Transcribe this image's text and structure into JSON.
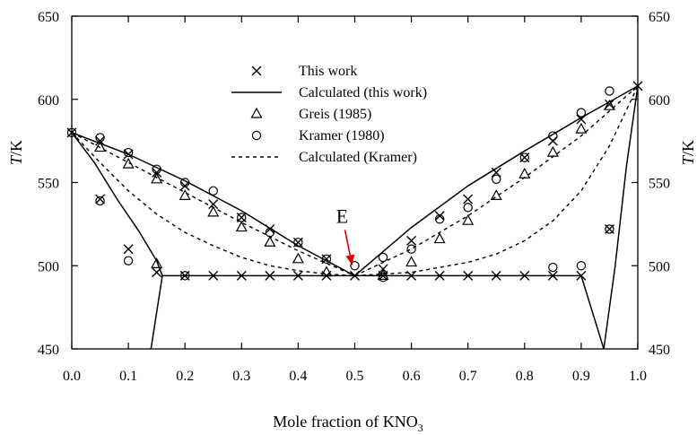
{
  "colors": {
    "ink": "#000000",
    "annotation": "#e00000",
    "background": "#ffffff"
  },
  "chart_data": {
    "type": "scatter",
    "title": "",
    "xlabel_prefix": "Mole fraction of KNO",
    "xlabel_sub": "3",
    "ylabel_left": {
      "italic": "T",
      "rest": "/K"
    },
    "ylabel_right": {
      "italic": "T",
      "rest": "/K"
    },
    "xlim": [
      0.0,
      1.0
    ],
    "ylim": [
      450,
      650
    ],
    "xticks": [
      0.0,
      0.1,
      0.2,
      0.3,
      0.4,
      0.5,
      0.6,
      0.7,
      0.8,
      0.9,
      1.0
    ],
    "xtick_labels": [
      "0.0",
      "0.1",
      "0.2",
      "0.3",
      "0.4",
      "0.5",
      "0.6",
      "0.7",
      "0.8",
      "0.9",
      "1.0"
    ],
    "yticks": [
      450,
      500,
      550,
      600,
      650
    ],
    "ytick_labels": [
      "450",
      "500",
      "550",
      "600",
      "650"
    ],
    "grid": false,
    "legend_position": "top-center",
    "annotation": {
      "text": "E",
      "x": 0.5,
      "y": 494,
      "color": "#e00000"
    },
    "series": [
      {
        "name": "This work",
        "marker": "x",
        "points": [
          [
            0.0,
            580
          ],
          [
            0.05,
            575
          ],
          [
            0.1,
            567
          ],
          [
            0.15,
            556
          ],
          [
            0.2,
            548
          ],
          [
            0.25,
            537
          ],
          [
            0.3,
            529
          ],
          [
            0.35,
            522
          ],
          [
            0.4,
            514
          ],
          [
            0.45,
            504
          ],
          [
            0.05,
            540
          ],
          [
            0.1,
            510
          ],
          [
            0.15,
            496
          ],
          [
            0.2,
            494
          ],
          [
            0.25,
            494
          ],
          [
            0.3,
            494
          ],
          [
            0.35,
            494
          ],
          [
            0.4,
            494
          ],
          [
            0.45,
            494
          ],
          [
            0.5,
            494
          ],
          [
            0.55,
            494
          ],
          [
            0.6,
            494
          ],
          [
            0.65,
            494
          ],
          [
            0.7,
            494
          ],
          [
            0.75,
            494
          ],
          [
            0.8,
            494
          ],
          [
            0.85,
            494
          ],
          [
            0.9,
            494
          ],
          [
            0.55,
            498
          ],
          [
            0.6,
            515
          ],
          [
            0.65,
            530
          ],
          [
            0.7,
            540
          ],
          [
            0.75,
            556
          ],
          [
            0.8,
            565
          ],
          [
            0.85,
            575
          ],
          [
            0.9,
            588
          ],
          [
            0.95,
            597
          ],
          [
            1.0,
            608
          ],
          [
            0.95,
            522
          ]
        ]
      },
      {
        "name": "Calculated (this work)",
        "style": "solid",
        "segments": [
          [
            [
              0.0,
              580
            ],
            [
              0.1,
              567
            ],
            [
              0.2,
              551
            ],
            [
              0.3,
              533
            ],
            [
              0.4,
              512
            ],
            [
              0.5,
              494
            ]
          ],
          [
            [
              0.5,
              494
            ],
            [
              0.6,
              523
            ],
            [
              0.7,
              548
            ],
            [
              0.8,
              569
            ],
            [
              0.9,
              589
            ],
            [
              1.0,
              608
            ]
          ],
          [
            [
              0.16,
              494
            ],
            [
              0.9,
              494
            ]
          ],
          [
            [
              0.0,
              580
            ],
            [
              0.04,
              562
            ],
            [
              0.08,
              540
            ],
            [
              0.12,
              520
            ],
            [
              0.15,
              503
            ],
            [
              0.16,
              494
            ]
          ],
          [
            [
              0.16,
              494
            ],
            [
              0.14,
              450
            ]
          ],
          [
            [
              0.9,
              494
            ],
            [
              0.94,
              450
            ]
          ],
          [
            [
              1.0,
              608
            ],
            [
              0.98,
              560
            ],
            [
              0.96,
              500
            ],
            [
              0.94,
              450
            ]
          ]
        ]
      },
      {
        "name": "Greis (1985)",
        "marker": "triangle",
        "points": [
          [
            0.05,
            571
          ],
          [
            0.1,
            561
          ],
          [
            0.15,
            552
          ],
          [
            0.2,
            542
          ],
          [
            0.25,
            532
          ],
          [
            0.3,
            523
          ],
          [
            0.35,
            514
          ],
          [
            0.4,
            504
          ],
          [
            0.45,
            496
          ],
          [
            0.15,
            501
          ],
          [
            0.55,
            494
          ],
          [
            0.6,
            502
          ],
          [
            0.65,
            516
          ],
          [
            0.7,
            527
          ],
          [
            0.75,
            542
          ],
          [
            0.8,
            555
          ],
          [
            0.85,
            568
          ],
          [
            0.9,
            582
          ],
          [
            0.95,
            596
          ]
        ]
      },
      {
        "name": "Kramer (1980)",
        "marker": "circle",
        "points": [
          [
            0.0,
            580
          ],
          [
            0.05,
            577
          ],
          [
            0.1,
            568
          ],
          [
            0.15,
            558
          ],
          [
            0.2,
            550
          ],
          [
            0.25,
            545
          ],
          [
            0.3,
            529
          ],
          [
            0.35,
            520
          ],
          [
            0.4,
            514
          ],
          [
            0.45,
            504
          ],
          [
            0.5,
            500
          ],
          [
            0.05,
            539
          ],
          [
            0.1,
            503
          ],
          [
            0.2,
            494
          ],
          [
            0.55,
            493
          ],
          [
            0.55,
            505
          ],
          [
            0.6,
            510
          ],
          [
            0.65,
            528
          ],
          [
            0.7,
            535
          ],
          [
            0.75,
            552
          ],
          [
            0.8,
            565
          ],
          [
            0.85,
            578
          ],
          [
            0.9,
            592
          ],
          [
            0.95,
            605
          ],
          [
            0.85,
            499
          ],
          [
            0.9,
            500
          ],
          [
            0.95,
            522
          ]
        ]
      },
      {
        "name": "Calculated (Kramer)",
        "style": "dashed",
        "segments": [
          [
            [
              0.0,
              580
            ],
            [
              0.1,
              562
            ],
            [
              0.2,
              544
            ],
            [
              0.3,
              526
            ],
            [
              0.4,
              509
            ],
            [
              0.5,
              494
            ]
          ],
          [
            [
              0.0,
              580
            ],
            [
              0.05,
              562
            ],
            [
              0.1,
              545
            ],
            [
              0.15,
              531
            ],
            [
              0.2,
              520
            ],
            [
              0.25,
              512
            ],
            [
              0.3,
              505
            ],
            [
              0.35,
              500
            ],
            [
              0.4,
              497
            ],
            [
              0.45,
              495
            ],
            [
              0.5,
              494
            ]
          ],
          [
            [
              0.5,
              494
            ],
            [
              0.6,
              510
            ],
            [
              0.7,
              530
            ],
            [
              0.8,
              553
            ],
            [
              0.9,
              578
            ],
            [
              1.0,
              608
            ]
          ],
          [
            [
              0.5,
              494
            ],
            [
              0.6,
              496
            ],
            [
              0.7,
              502
            ],
            [
              0.75,
              507
            ],
            [
              0.8,
              515
            ],
            [
              0.85,
              527
            ],
            [
              0.9,
              545
            ],
            [
              0.95,
              572
            ],
            [
              1.0,
              608
            ]
          ]
        ]
      }
    ]
  }
}
